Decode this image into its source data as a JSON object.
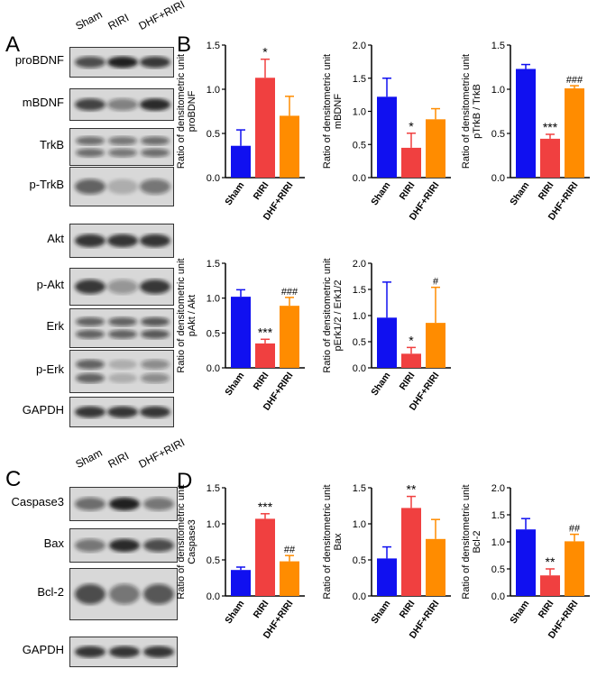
{
  "panel_letters": {
    "a": "A",
    "b": "B",
    "c": "C",
    "d": "D"
  },
  "blot_top": {
    "lanes": [
      "Sham",
      "RIRI",
      "DHF+RIRI"
    ],
    "rows": [
      "proBDNF",
      "mBDNF",
      "TrkB",
      "p-TrkB",
      "Akt",
      "p-Akt",
      "Erk",
      "p-Erk",
      "GAPDH"
    ]
  },
  "blot_bottom": {
    "lanes": [
      "Sham",
      "RIRI",
      "DHF+RIRI"
    ],
    "rows": [
      "Caspase3",
      "Bax",
      "Bcl-2",
      "GAPDH"
    ]
  },
  "colors": {
    "sham": "#1010f0",
    "riri": "#f04040",
    "dhf": "#ff8c00"
  },
  "chart_data": [
    {
      "type": "bar",
      "ylabel": "Ratio of densitometric unit proBDNF",
      "ylim": [
        0,
        1.5
      ],
      "yticks": [
        "0.0",
        "0.5",
        "1.0",
        "1.5"
      ],
      "categories": [
        "Sham",
        "RIRI",
        "DHF+RIRI"
      ],
      "values": [
        0.36,
        1.13,
        0.7
      ],
      "errors": [
        0.18,
        0.21,
        0.22
      ],
      "annotations": [
        "",
        "*",
        ""
      ]
    },
    {
      "type": "bar",
      "ylabel": "Ratio of densitometric unit mBDNF",
      "ylim": [
        0,
        2.0
      ],
      "yticks": [
        "0.0",
        "0.5",
        "1.0",
        "1.5",
        "2.0"
      ],
      "categories": [
        "Sham",
        "RIRI",
        "DHF+RIRI"
      ],
      "values": [
        1.22,
        0.45,
        0.88
      ],
      "errors": [
        0.28,
        0.22,
        0.16
      ],
      "annotations": [
        "",
        "*",
        ""
      ]
    },
    {
      "type": "bar",
      "ylabel": "Ratio of densitometric unit pTrkB / TrkB",
      "ylim": [
        0,
        1.5
      ],
      "yticks": [
        "0.0",
        "0.5",
        "1.0",
        "1.5"
      ],
      "categories": [
        "Sham",
        "RIRI",
        "DHF+RIRI"
      ],
      "values": [
        1.23,
        0.44,
        1.01
      ],
      "errors": [
        0.05,
        0.05,
        0.03
      ],
      "annotations": [
        "",
        "***",
        "###"
      ]
    },
    {
      "type": "bar",
      "ylabel": "Ratio of densitometric unit pAkt / Akt",
      "ylim": [
        0,
        1.5
      ],
      "yticks": [
        "0.0",
        "0.5",
        "1.0",
        "1.5"
      ],
      "categories": [
        "Sham",
        "RIRI",
        "DHF+RIRI"
      ],
      "values": [
        1.02,
        0.35,
        0.89
      ],
      "errors": [
        0.1,
        0.06,
        0.12
      ],
      "annotations": [
        "",
        "***",
        "###"
      ]
    },
    {
      "type": "bar",
      "ylabel": "Ratio of densitometric unit pErk1/2 / Erk1/2",
      "ylim": [
        0,
        2.0
      ],
      "yticks": [
        "0.0",
        "0.5",
        "1.0",
        "1.5",
        "2.0"
      ],
      "categories": [
        "Sham",
        "RIRI",
        "DHF+RIRI"
      ],
      "values": [
        0.96,
        0.27,
        0.86
      ],
      "errors": [
        0.68,
        0.12,
        0.68
      ],
      "annotations": [
        "",
        "*",
        "#"
      ]
    },
    {
      "type": "bar",
      "ylabel": "Ratio of densitometric unit Caspase3",
      "ylim": [
        0,
        1.5
      ],
      "yticks": [
        "0.0",
        "0.5",
        "1.0",
        "1.5"
      ],
      "categories": [
        "Sham",
        "RIRI",
        "DHF+RIRI"
      ],
      "values": [
        0.36,
        1.07,
        0.48
      ],
      "errors": [
        0.04,
        0.07,
        0.08
      ],
      "annotations": [
        "",
        "***",
        "##"
      ]
    },
    {
      "type": "bar",
      "ylabel": "Ratio of densitometric unit Bax",
      "ylim": [
        0,
        1.5
      ],
      "yticks": [
        "0.0",
        "0.5",
        "1.0",
        "1.5"
      ],
      "categories": [
        "Sham",
        "RIRI",
        "DHF+RIRI"
      ],
      "values": [
        0.52,
        1.22,
        0.79
      ],
      "errors": [
        0.16,
        0.16,
        0.27
      ],
      "annotations": [
        "",
        "**",
        ""
      ]
    },
    {
      "type": "bar",
      "ylabel": "Ratio of densitometric unit Bcl-2",
      "ylim": [
        0,
        2.0
      ],
      "yticks": [
        "0.0",
        "0.5",
        "1.0",
        "1.5",
        "2.0"
      ],
      "categories": [
        "Sham",
        "RIRI",
        "DHF+RIRI"
      ],
      "values": [
        1.23,
        0.38,
        1.01
      ],
      "errors": [
        0.2,
        0.12,
        0.13
      ],
      "annotations": [
        "",
        "**",
        "##"
      ]
    }
  ]
}
